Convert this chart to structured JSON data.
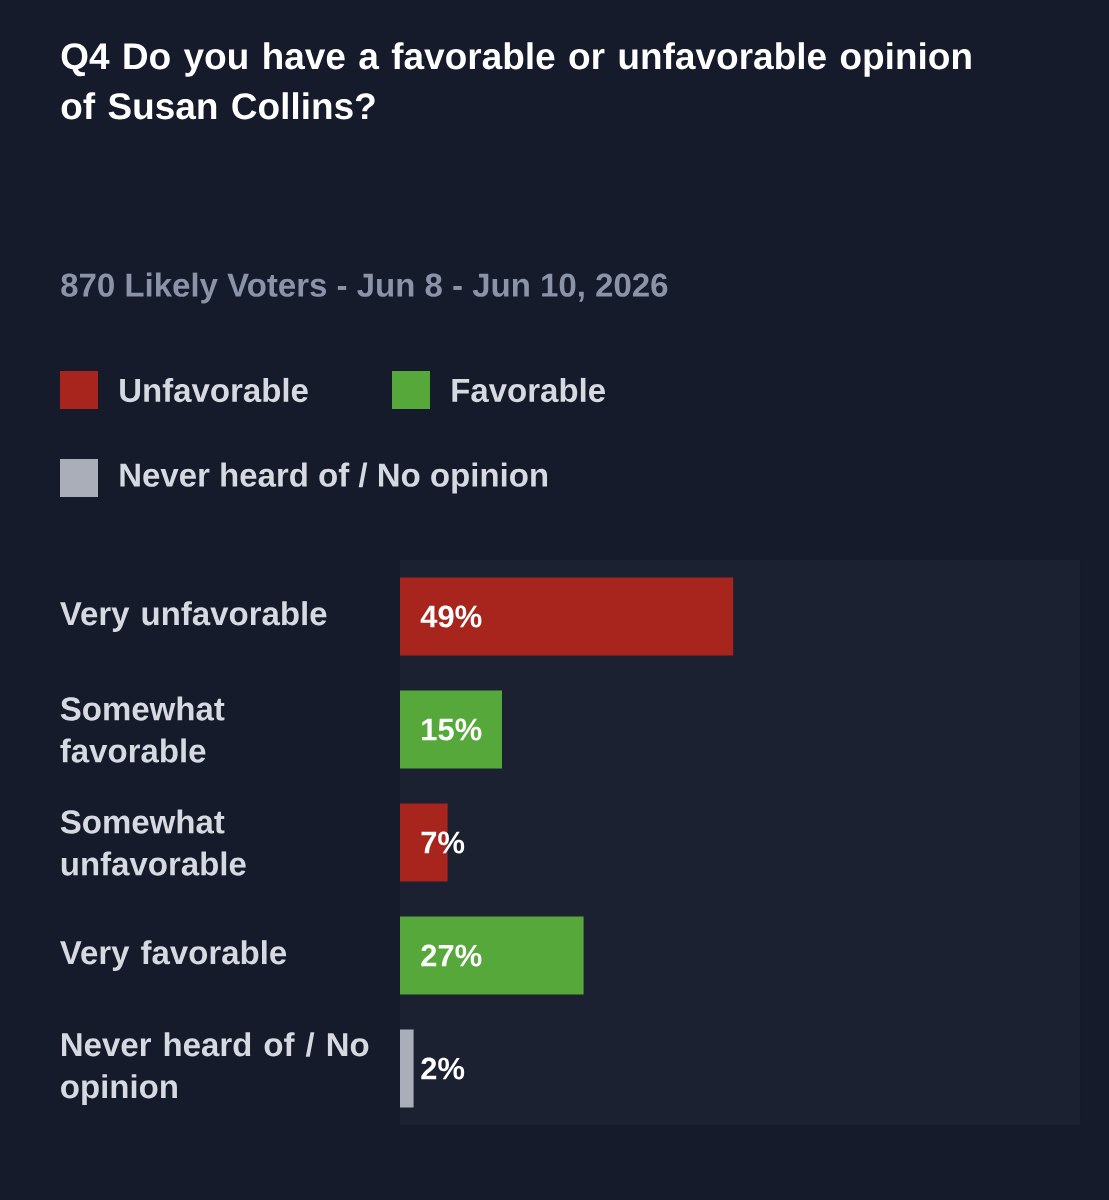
{
  "chart_data": {
    "type": "bar",
    "orientation": "horizontal",
    "title": "Q4 Do you have a favorable or unfavorable opinion of Susan Collins?",
    "subtitle": "870 Likely Voters - Jun 8 - Jun 10, 2026",
    "categories": [
      "Very unfavorable",
      "Somewhat favorable",
      "Somewhat unfavorable",
      "Very favorable",
      "Never heard of / No opinion"
    ],
    "series": [
      {
        "name": "Unfavorable",
        "color": "#a8251e",
        "values": [
          49,
          null,
          7,
          null,
          null
        ],
        "value_labels": [
          "49%",
          null,
          "7%",
          null,
          null
        ]
      },
      {
        "name": "Favorable",
        "color": "#57a83a",
        "values": [
          null,
          15,
          null,
          27,
          null
        ],
        "value_labels": [
          null,
          "15%",
          null,
          "27%",
          null
        ]
      },
      {
        "name": "Never heard of / No opinion",
        "color": "#a9aeb8",
        "values": [
          null,
          null,
          null,
          null,
          2
        ],
        "value_labels": [
          null,
          null,
          null,
          null,
          "2%"
        ]
      }
    ],
    "xlim": [
      0,
      100
    ],
    "tick_labels": "y",
    "legend": "top left"
  }
}
